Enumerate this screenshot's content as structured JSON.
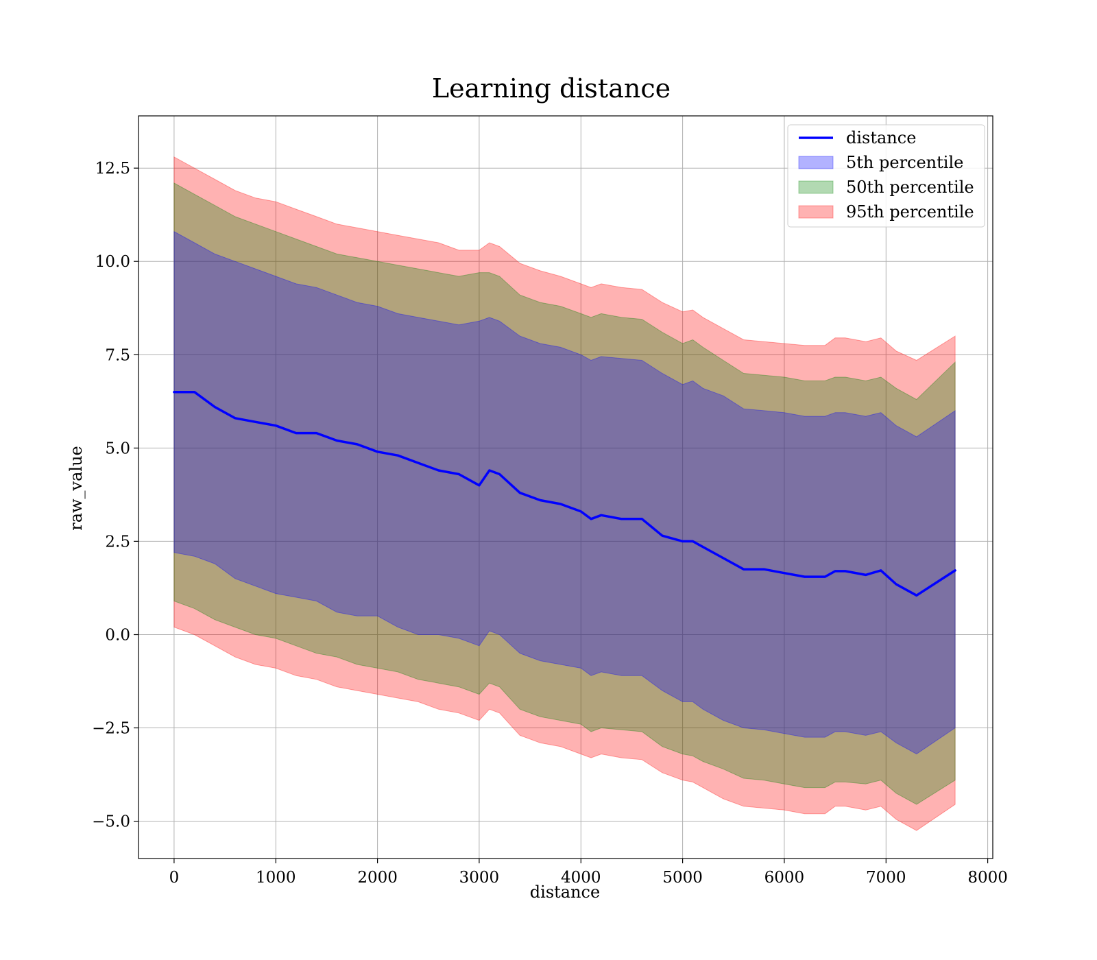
{
  "chart_data": {
    "type": "area",
    "title": "Learning distance",
    "xlabel": "distance",
    "ylabel": "raw_value",
    "xlim": [
      -350,
      8050
    ],
    "ylim": [
      -6.0,
      13.9
    ],
    "xticks": [
      0,
      1000,
      2000,
      3000,
      4000,
      5000,
      6000,
      7000,
      8000
    ],
    "yticks": [
      -5.0,
      -2.5,
      0.0,
      2.5,
      5.0,
      7.5,
      10.0,
      12.5
    ],
    "xtick_labels": [
      "0",
      "1000",
      "2000",
      "3000",
      "4000",
      "5000",
      "6000",
      "7000",
      "8000"
    ],
    "ytick_labels": [
      "−5.0",
      "−2.5",
      "0.0",
      "2.5",
      "5.0",
      "7.5",
      "10.0",
      "12.5"
    ],
    "grid": true,
    "legend_position": "top-right",
    "x": [
      0,
      200,
      400,
      600,
      800,
      1000,
      1200,
      1400,
      1600,
      1800,
      2000,
      2200,
      2400,
      2600,
      2800,
      3000,
      3100,
      3200,
      3400,
      3600,
      3800,
      4000,
      4100,
      4200,
      4400,
      4600,
      4800,
      5000,
      5100,
      5200,
      5400,
      5600,
      5800,
      6000,
      6200,
      6400,
      6500,
      6600,
      6800,
      6950,
      7100,
      7300,
      7680
    ],
    "series": [
      {
        "name": "distance",
        "kind": "line",
        "color": "#0000ff",
        "values": [
          6.5,
          6.5,
          6.1,
          5.8,
          5.7,
          5.6,
          5.4,
          5.4,
          5.2,
          5.1,
          4.9,
          4.8,
          4.6,
          4.4,
          4.3,
          4.0,
          4.4,
          4.3,
          3.8,
          3.6,
          3.5,
          3.3,
          3.1,
          3.2,
          3.1,
          3.1,
          2.65,
          2.5,
          2.5,
          2.35,
          2.05,
          1.75,
          1.75,
          1.65,
          1.55,
          1.55,
          1.7,
          1.7,
          1.6,
          1.72,
          1.35,
          1.05,
          1.72
        ]
      },
      {
        "name": "5th percentile",
        "kind": "band",
        "color": "#0000ff",
        "opacity": 0.3,
        "upper": [
          10.8,
          10.5,
          10.2,
          10.0,
          9.8,
          9.6,
          9.4,
          9.3,
          9.1,
          8.9,
          8.8,
          8.6,
          8.5,
          8.4,
          8.3,
          8.4,
          8.5,
          8.4,
          8.0,
          7.8,
          7.7,
          7.5,
          7.35,
          7.45,
          7.4,
          7.35,
          7.0,
          6.7,
          6.8,
          6.6,
          6.4,
          6.05,
          6.0,
          5.95,
          5.85,
          5.85,
          5.95,
          5.95,
          5.85,
          5.95,
          5.6,
          5.3,
          6.0
        ],
        "lower": [
          2.2,
          2.1,
          1.9,
          1.5,
          1.3,
          1.1,
          1.0,
          0.9,
          0.6,
          0.5,
          0.5,
          0.2,
          0.0,
          0.0,
          -0.1,
          -0.3,
          0.1,
          0.0,
          -0.5,
          -0.7,
          -0.8,
          -0.9,
          -1.1,
          -1.0,
          -1.1,
          -1.1,
          -1.5,
          -1.8,
          -1.8,
          -2.0,
          -2.3,
          -2.5,
          -2.55,
          -2.65,
          -2.75,
          -2.75,
          -2.6,
          -2.6,
          -2.7,
          -2.6,
          -2.9,
          -3.2,
          -2.5
        ]
      },
      {
        "name": "50th percentile",
        "kind": "band",
        "color": "#008000",
        "opacity": 0.3,
        "upper": [
          12.1,
          11.8,
          11.5,
          11.2,
          11.0,
          10.8,
          10.6,
          10.4,
          10.2,
          10.1,
          10.0,
          9.9,
          9.8,
          9.7,
          9.6,
          9.7,
          9.7,
          9.6,
          9.1,
          8.9,
          8.8,
          8.6,
          8.5,
          8.6,
          8.5,
          8.45,
          8.1,
          7.8,
          7.9,
          7.7,
          7.35,
          7.0,
          6.95,
          6.9,
          6.8,
          6.8,
          6.9,
          6.9,
          6.8,
          6.9,
          6.6,
          6.3,
          7.3
        ],
        "lower": [
          0.9,
          0.7,
          0.4,
          0.2,
          0.0,
          -0.1,
          -0.3,
          -0.5,
          -0.6,
          -0.8,
          -0.9,
          -1.0,
          -1.2,
          -1.3,
          -1.4,
          -1.6,
          -1.3,
          -1.4,
          -2.0,
          -2.2,
          -2.3,
          -2.4,
          -2.6,
          -2.5,
          -2.55,
          -2.6,
          -3.0,
          -3.2,
          -3.25,
          -3.4,
          -3.6,
          -3.85,
          -3.9,
          -4.0,
          -4.1,
          -4.1,
          -3.95,
          -3.95,
          -4.0,
          -3.9,
          -4.25,
          -4.55,
          -3.9
        ]
      },
      {
        "name": "95th percentile",
        "kind": "band",
        "color": "#ff0000",
        "opacity": 0.3,
        "upper": [
          12.8,
          12.5,
          12.2,
          11.9,
          11.7,
          11.6,
          11.4,
          11.2,
          11.0,
          10.9,
          10.8,
          10.7,
          10.6,
          10.5,
          10.3,
          10.3,
          10.5,
          10.4,
          9.95,
          9.75,
          9.6,
          9.4,
          9.3,
          9.4,
          9.3,
          9.25,
          8.9,
          8.65,
          8.7,
          8.5,
          8.2,
          7.9,
          7.85,
          7.8,
          7.75,
          7.75,
          7.95,
          7.95,
          7.85,
          7.95,
          7.6,
          7.35,
          8.0
        ],
        "lower": [
          0.2,
          0.0,
          -0.3,
          -0.6,
          -0.8,
          -0.9,
          -1.1,
          -1.2,
          -1.4,
          -1.5,
          -1.6,
          -1.7,
          -1.8,
          -2.0,
          -2.1,
          -2.3,
          -2.0,
          -2.1,
          -2.7,
          -2.9,
          -3.0,
          -3.2,
          -3.3,
          -3.2,
          -3.3,
          -3.35,
          -3.7,
          -3.9,
          -3.95,
          -4.1,
          -4.4,
          -4.6,
          -4.65,
          -4.7,
          -4.8,
          -4.8,
          -4.6,
          -4.6,
          -4.7,
          -4.6,
          -4.95,
          -5.25,
          -4.55
        ]
      }
    ]
  }
}
